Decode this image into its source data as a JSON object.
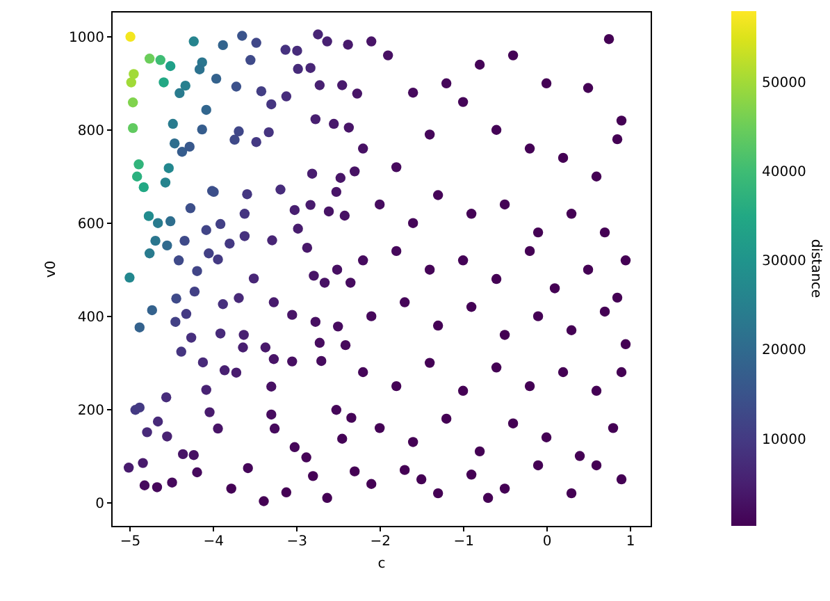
{
  "chart_data": {
    "type": "scatter",
    "xlabel": "c",
    "ylabel": "v0",
    "clabel": "distance",
    "xlim": [
      -5.22,
      1.25
    ],
    "xticks": [
      -5,
      -4,
      -3,
      -2,
      -1,
      0,
      1
    ],
    "ylim": [
      -50,
      1055
    ],
    "yticks": [
      0,
      200,
      400,
      600,
      800,
      1000
    ],
    "clim": [
      300,
      58000
    ],
    "cticks": [
      10000,
      20000,
      30000,
      40000,
      50000
    ],
    "grid": false,
    "marker": "circle",
    "x": [
      -4.99,
      -4.76,
      -4.63,
      -4.51,
      -4.95,
      -4.98,
      -4.96,
      -4.96,
      -4.59,
      -4.89,
      -4.91,
      -4.83,
      -4.53,
      -4.57,
      -4.77,
      -4.66,
      -4.51,
      -4.69,
      -4.76,
      -4.55,
      -5.0,
      -4.73,
      -4.88,
      -4.23,
      -4.13,
      -4.16,
      -4.33,
      -4.4,
      -3.96,
      -4.08,
      -4.48,
      -4.46,
      -4.37,
      -4.28,
      -4.13,
      -4.27,
      -4.34,
      -4.41,
      -4.01,
      -4.08,
      -3.91,
      -4.05,
      -3.94,
      -4.19,
      -4.22,
      -4.44,
      -4.45,
      -4.32,
      -4.26,
      -4.38,
      -4.12,
      -4.88,
      -4.93,
      -4.66,
      -4.56,
      -4.79,
      -4.55,
      -5.01,
      -4.84,
      -4.82,
      -4.67,
      -4.49,
      -4.36,
      -4.23,
      -4.19,
      -3.88,
      -3.65,
      -3.48,
      -3.55,
      -3.72,
      -3.42,
      -3.74,
      -3.69,
      -3.99,
      -3.59,
      -3.62,
      -3.8,
      -3.62,
      -3.88,
      -3.69,
      -3.91,
      -3.63,
      -3.64,
      -3.86,
      -3.72,
      -4.08,
      -4.04,
      -3.94,
      -3.78,
      -3.58,
      -3.3,
      -3.3,
      -3.26,
      -3.39,
      -3.12,
      -3.02,
      -2.88,
      -3.37,
      -3.27,
      -3.05,
      -3.51,
      -3.27,
      -3.05,
      -3.19,
      -3.29,
      -2.87,
      -2.79,
      -2.98,
      -3.02,
      -2.83,
      -3.12,
      -3.3,
      -3.33,
      -3.48,
      -2.98,
      -2.83,
      -2.72,
      -3.13,
      -2.99,
      -2.74,
      -2.63,
      -2.38,
      -2.77,
      -2.45,
      -2.27,
      -2.55,
      -2.37,
      -2.81,
      -2.47,
      -2.3,
      -2.61,
      -2.42,
      -2.52,
      -2.66,
      -2.51,
      -2.35,
      -2.77,
      -2.5,
      -2.72,
      -2.41,
      -2.7,
      -2.52,
      -2.34,
      -2.45,
      -2.3,
      -2.8,
      -2.63,
      -2.1,
      -1.9,
      -1.6,
      -1.2,
      -0.8,
      -0.4,
      0.0,
      0.5,
      0.75,
      0.9,
      -2.2,
      -1.8,
      -1.4,
      -1.0,
      -0.6,
      -0.2,
      0.2,
      0.6,
      0.85,
      -2.0,
      -1.6,
      -1.3,
      -0.9,
      -0.5,
      -0.1,
      0.3,
      0.7,
      0.95,
      -2.2,
      -1.8,
      -1.4,
      -1.0,
      -0.6,
      -0.2,
      0.1,
      0.5,
      0.85,
      -2.1,
      -1.7,
      -1.3,
      -0.9,
      -0.5,
      -0.1,
      0.3,
      0.7,
      0.95,
      -2.2,
      -1.8,
      -1.4,
      -1.0,
      -0.6,
      -0.2,
      0.2,
      0.6,
      0.9,
      -2.0,
      -1.6,
      -1.2,
      -0.8,
      -0.4,
      0.0,
      0.4,
      0.8,
      -2.1,
      -1.7,
      -1.3,
      -0.9,
      -0.5,
      -0.1,
      0.3,
      0.6,
      0.9,
      -0.7,
      -1.5
    ],
    "values": [
      1000,
      953,
      950,
      937,
      920,
      902,
      859,
      804,
      902,
      726,
      700,
      677,
      718,
      687,
      615,
      600,
      604,
      562,
      535,
      552,
      483,
      413,
      376,
      990,
      945,
      930,
      895,
      879,
      910,
      843,
      813,
      771,
      753,
      764,
      801,
      632,
      562,
      520,
      669,
      585,
      598,
      535,
      522,
      497,
      453,
      438,
      388,
      405,
      354,
      324,
      301,
      204,
      199,
      174,
      226,
      151,
      142,
      75,
      85,
      37,
      33,
      43,
      104,
      102,
      65,
      982,
      1002,
      987,
      950,
      893,
      883,
      779,
      797,
      667,
      662,
      620,
      556,
      572,
      426,
      439,
      363,
      360,
      333,
      284,
      279,
      242,
      194,
      159,
      30,
      74,
      249,
      189,
      159,
      3,
      22,
      119,
      97,
      333,
      308,
      303,
      481,
      430,
      403,
      672,
      563,
      547,
      487,
      588,
      628,
      639,
      872,
      855,
      795,
      774,
      931,
      933,
      896,
      972,
      970,
      1005,
      990,
      983,
      823,
      896,
      878,
      813,
      805,
      706,
      697,
      711,
      625,
      616,
      667,
      472,
      500,
      472,
      388,
      378,
      343,
      338,
      304,
      199,
      182,
      137,
      67,
      57,
      10,
      990,
      960,
      880,
      900,
      940,
      960,
      900,
      890,
      995,
      820,
      760,
      720,
      790,
      860,
      800,
      760,
      740,
      700,
      780,
      640,
      600,
      660,
      620,
      640,
      580,
      620,
      580,
      520,
      520,
      540,
      500,
      520,
      480,
      540,
      460,
      500,
      440,
      400,
      430,
      380,
      420,
      360,
      400,
      370,
      410,
      340,
      280,
      250,
      300,
      240,
      290,
      250,
      280,
      240,
      280,
      160,
      130,
      180,
      110,
      170,
      140,
      100,
      160,
      40,
      70,
      20,
      60,
      30,
      80,
      20,
      80,
      50,
      10,
      50
    ],
    "cvalues": [
      57000,
      45000,
      40000,
      33000,
      50000,
      50000,
      47000,
      44000,
      35000,
      38000,
      37000,
      35000,
      27000,
      26000,
      28000,
      24000,
      21000,
      23000,
      24000,
      20000,
      27000,
      18000,
      18000,
      26000,
      23000,
      22000,
      25000,
      24000,
      18000,
      19000,
      24000,
      21000,
      17000,
      16000,
      17000,
      14000,
      13000,
      13000,
      14000,
      12000,
      11000,
      11000,
      10000,
      12000,
      11000,
      13000,
      11000,
      10000,
      8000,
      9000,
      7000,
      10000,
      10000,
      7000,
      7500,
      7000,
      5500,
      4400,
      4200,
      1800,
      1400,
      1500,
      3100,
      2700,
      1700,
      18500,
      15000,
      12500,
      12900,
      14400,
      10600,
      12800,
      12500,
      14100,
      9400,
      9100,
      9700,
      8400,
      8100,
      6900,
      7100,
      5300,
      4900,
      5200,
      4500,
      5600,
      4300,
      3200,
      500,
      1000,
      2600,
      2000,
      1600,
      300,
      300,
      1000,
      700,
      3800,
      3200,
      2400,
      6200,
      4400,
      3300,
      7500,
      6000,
      3800,
      3100,
      4600,
      5000,
      4300,
      7700,
      9100,
      8800,
      9800,
      7200,
      6200,
      5300,
      8500,
      7500,
      6000,
      5400,
      4200,
      5000,
      4100,
      3300,
      4000,
      3400,
      4700,
      3300,
      2800,
      3000,
      2700,
      3200,
      2700,
      2400,
      1900,
      2400,
      1800,
      2000,
      1500,
      1800,
      1000,
      700,
      600,
      300,
      400,
      300,
      3200,
      2500,
      1700,
      1200,
      800,
      600,
      400,
      300,
      300,
      300,
      2700,
      1700,
      1200,
      900,
      600,
      400,
      300,
      300,
      300,
      1900,
      1100,
      900,
      600,
      400,
      300,
      300,
      300,
      300,
      1800,
      1300,
      800,
      600,
      300,
      300,
      300,
      300,
      300,
      1300,
      900,
      500,
      400,
      300,
      300,
      300,
      300,
      300,
      1000,
      600,
      500,
      300,
      300,
      300,
      300,
      300,
      300,
      500,
      300,
      300,
      300,
      300,
      300,
      300,
      300,
      300,
      300,
      300,
      300,
      300,
      300,
      300,
      300,
      300,
      300,
      300
    ]
  }
}
